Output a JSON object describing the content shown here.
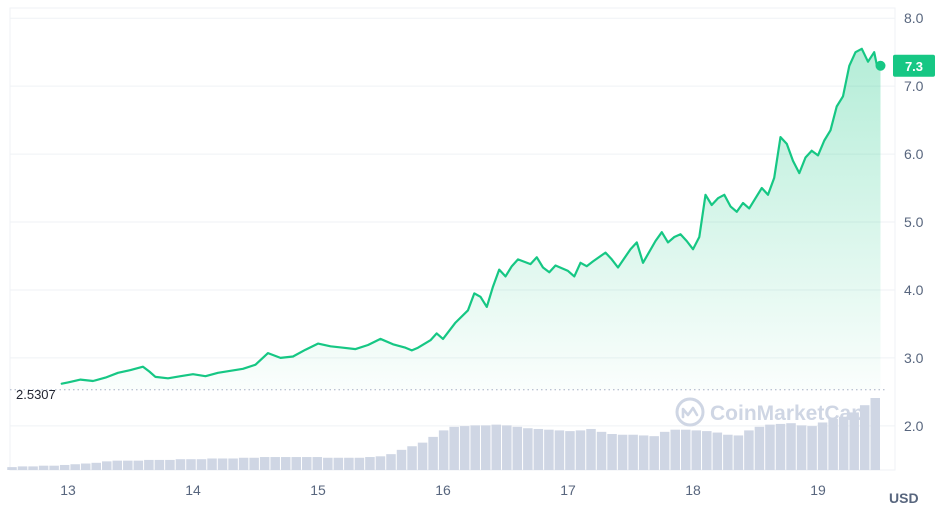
{
  "chart_data": {
    "type": "area",
    "title": "",
    "xlabel": "",
    "ylabel": "",
    "unit_label": "USD",
    "x_tick_labels": [
      "13",
      "14",
      "15",
      "16",
      "17",
      "18",
      "19"
    ],
    "x_range": [
      12.95,
      19.5
    ],
    "y_ticks": [
      2.0,
      3.0,
      4.0,
      5.0,
      6.0,
      7.0,
      8.0
    ],
    "y_tick_labels": [
      "2.0",
      "3.0",
      "4.0",
      "5.0",
      "6.0",
      "7.0",
      "8.0"
    ],
    "ylim": [
      1.35,
      8.15
    ],
    "reference_line": {
      "value": 2.5307,
      "label": "2.5307"
    },
    "current_price": {
      "value": 7.3,
      "label": "7.3"
    },
    "grid": true,
    "colors": {
      "line": "#16c784",
      "area_top": "#16c784",
      "volume": "#cfd6e4",
      "badge": "#16c784",
      "reference": "#a6b0c3",
      "grid": "#eff2f5"
    },
    "watermark": "CoinMarketCap",
    "watermark_icon": "coinmarketcap-logo-icon",
    "series": [
      {
        "kind": "price",
        "x": [
          12.95,
          13.0,
          13.1,
          13.2,
          13.3,
          13.4,
          13.5,
          13.6,
          13.65,
          13.7,
          13.8,
          13.9,
          14.0,
          14.1,
          14.2,
          14.3,
          14.4,
          14.5,
          14.6,
          14.7,
          14.8,
          14.9,
          15.0,
          15.1,
          15.2,
          15.3,
          15.4,
          15.5,
          15.6,
          15.7,
          15.75,
          15.8,
          15.9,
          15.95,
          16.0,
          16.1,
          16.2,
          16.25,
          16.3,
          16.35,
          16.4,
          16.45,
          16.5,
          16.55,
          16.6,
          16.7,
          16.75,
          16.8,
          16.85,
          16.9,
          17.0,
          17.05,
          17.1,
          17.15,
          17.2,
          17.3,
          17.35,
          17.4,
          17.5,
          17.55,
          17.6,
          17.7,
          17.75,
          17.8,
          17.85,
          17.9,
          17.95,
          18.0,
          18.05,
          18.1,
          18.15,
          18.2,
          18.25,
          18.3,
          18.35,
          18.4,
          18.45,
          18.5,
          18.55,
          18.6,
          18.65,
          18.7,
          18.75,
          18.8,
          18.85,
          18.9,
          18.95,
          19.0,
          19.05,
          19.1,
          19.15,
          19.2,
          19.25,
          19.3,
          19.35,
          19.4,
          19.45,
          19.47,
          19.5
        ],
        "y": [
          2.62,
          2.64,
          2.68,
          2.66,
          2.71,
          2.78,
          2.82,
          2.87,
          2.8,
          2.72,
          2.7,
          2.73,
          2.76,
          2.73,
          2.78,
          2.81,
          2.84,
          2.9,
          3.07,
          3.0,
          3.02,
          3.12,
          3.21,
          3.17,
          3.15,
          3.13,
          3.19,
          3.28,
          3.2,
          3.15,
          3.11,
          3.15,
          3.26,
          3.36,
          3.28,
          3.52,
          3.7,
          3.95,
          3.9,
          3.75,
          4.05,
          4.3,
          4.2,
          4.35,
          4.45,
          4.38,
          4.48,
          4.33,
          4.26,
          4.36,
          4.28,
          4.2,
          4.4,
          4.35,
          4.42,
          4.55,
          4.45,
          4.33,
          4.6,
          4.7,
          4.4,
          4.72,
          4.85,
          4.7,
          4.78,
          4.82,
          4.72,
          4.6,
          4.78,
          5.4,
          5.25,
          5.35,
          5.4,
          5.23,
          5.15,
          5.28,
          5.2,
          5.35,
          5.5,
          5.4,
          5.65,
          6.25,
          6.15,
          5.9,
          5.72,
          5.95,
          6.05,
          5.98,
          6.2,
          6.35,
          6.7,
          6.85,
          7.3,
          7.5,
          7.55,
          7.36,
          7.5,
          7.32,
          7.3
        ]
      },
      {
        "kind": "volume",
        "relative_values": [
          0.04,
          0.05,
          0.05,
          0.06,
          0.06,
          0.07,
          0.08,
          0.09,
          0.1,
          0.12,
          0.13,
          0.13,
          0.13,
          0.14,
          0.14,
          0.14,
          0.15,
          0.15,
          0.15,
          0.16,
          0.16,
          0.16,
          0.17,
          0.17,
          0.18,
          0.18,
          0.18,
          0.18,
          0.18,
          0.18,
          0.17,
          0.17,
          0.17,
          0.17,
          0.18,
          0.19,
          0.22,
          0.28,
          0.33,
          0.38,
          0.46,
          0.55,
          0.6,
          0.61,
          0.62,
          0.62,
          0.63,
          0.62,
          0.6,
          0.58,
          0.57,
          0.56,
          0.55,
          0.54,
          0.55,
          0.57,
          0.53,
          0.5,
          0.49,
          0.49,
          0.48,
          0.47,
          0.53,
          0.56,
          0.56,
          0.55,
          0.54,
          0.52,
          0.49,
          0.48,
          0.55,
          0.6,
          0.63,
          0.64,
          0.65,
          0.62,
          0.61,
          0.66,
          0.71,
          0.74,
          0.8,
          0.9,
          1.0
        ]
      }
    ]
  }
}
